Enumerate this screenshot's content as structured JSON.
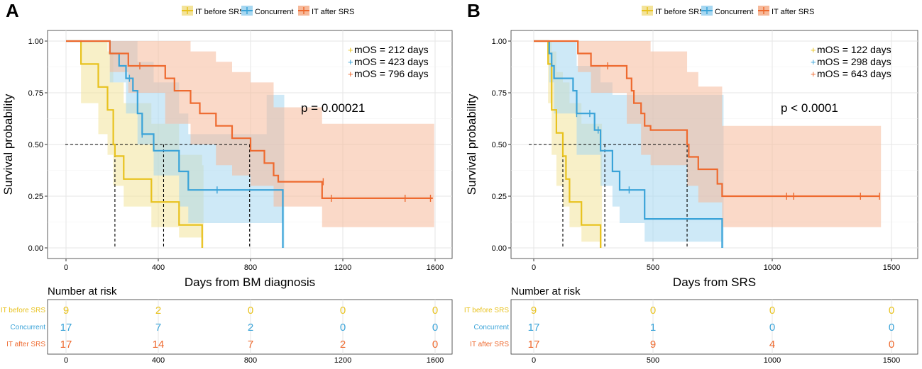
{
  "colors": {
    "before": "#e8c21e",
    "concurrent": "#3aa3d8",
    "after": "#ee6a2f",
    "before_fill": "#f3e39a",
    "concurrent_fill": "#a6d7f1",
    "after_fill": "#f6b99a",
    "grid": "#e6e6e6"
  },
  "chart_data": [
    {
      "type": "kaplan-meier",
      "panel_label": "A",
      "legend": [
        "IT before SRS",
        "Concurrent",
        "IT after SRS"
      ],
      "xlabel": "Days from BM diagnosis",
      "ylabel": "Survival probability",
      "xlim": [
        0,
        1600
      ],
      "ylim": [
        0,
        1
      ],
      "x_ticks": [
        "0",
        "400",
        "800",
        "1200",
        "1600"
      ],
      "y_ticks": [
        "0.00",
        "0.25",
        "0.50",
        "0.75",
        "1.00"
      ],
      "p_value_text": "p = 0.00021",
      "median_labels": [
        "mOS = 212 days",
        "mOS = 423 days",
        "mOS = 796 days"
      ],
      "medians": [
        212,
        423,
        796
      ],
      "series": [
        {
          "name": "IT before SRS",
          "color_key": "before",
          "steps": [
            [
              0,
              1
            ],
            [
              65,
              1
            ],
            [
              65,
              0.889
            ],
            [
              140,
              0.889
            ],
            [
              140,
              0.778
            ],
            [
              180,
              0.778
            ],
            [
              180,
              0.667
            ],
            [
              205,
              0.667
            ],
            [
              205,
              0.5
            ],
            [
              212,
              0.5
            ],
            [
              212,
              0.444
            ],
            [
              250,
              0.444
            ],
            [
              250,
              0.333
            ],
            [
              370,
              0.333
            ],
            [
              370,
              0.222
            ],
            [
              490,
              0.222
            ],
            [
              490,
              0.111
            ],
            [
              590,
              0.111
            ],
            [
              590,
              0
            ]
          ],
          "censors": [],
          "ci": [
            [
              0,
              1,
              1
            ],
            [
              65,
              0.7,
              1
            ],
            [
              140,
              0.55,
              1
            ],
            [
              180,
              0.45,
              0.95
            ],
            [
              205,
              0.3,
              0.8
            ],
            [
              250,
              0.2,
              0.7
            ],
            [
              370,
              0.1,
              0.6
            ],
            [
              490,
              0.05,
              0.45
            ],
            [
              590,
              0,
              0.4
            ]
          ]
        },
        {
          "name": "Concurrent",
          "color_key": "concurrent",
          "steps": [
            [
              0,
              1
            ],
            [
              190,
              1
            ],
            [
              190,
              0.94
            ],
            [
              230,
              0.94
            ],
            [
              230,
              0.88
            ],
            [
              260,
              0.88
            ],
            [
              260,
              0.82
            ],
            [
              290,
              0.82
            ],
            [
              290,
              0.76
            ],
            [
              310,
              0.76
            ],
            [
              310,
              0.65
            ],
            [
              330,
              0.65
            ],
            [
              330,
              0.55
            ],
            [
              380,
              0.55
            ],
            [
              380,
              0.47
            ],
            [
              490,
              0.47
            ],
            [
              490,
              0.37
            ],
            [
              530,
              0.37
            ],
            [
              530,
              0.28
            ],
            [
              940,
              0.28
            ],
            [
              940,
              0
            ]
          ],
          "censors": [
            [
              275,
              0.82
            ],
            [
              330,
              0.55
            ],
            [
              655,
              0.28
            ]
          ],
          "ci": [
            [
              0,
              1,
              1
            ],
            [
              190,
              0.8,
              1
            ],
            [
              260,
              0.65,
              1
            ],
            [
              310,
              0.5,
              0.9
            ],
            [
              380,
              0.35,
              0.8
            ],
            [
              490,
              0.2,
              0.65
            ],
            [
              530,
              0.12,
              0.55
            ],
            [
              720,
              0.12,
              0.55
            ],
            [
              870,
              0.12,
              0.74
            ],
            [
              940,
              0,
              0.74
            ]
          ]
        },
        {
          "name": "IT after SRS",
          "color_key": "after",
          "steps": [
            [
              0,
              1
            ],
            [
              190,
              1
            ],
            [
              190,
              0.94
            ],
            [
              270,
              0.94
            ],
            [
              270,
              0.88
            ],
            [
              430,
              0.88
            ],
            [
              430,
              0.82
            ],
            [
              470,
              0.82
            ],
            [
              470,
              0.76
            ],
            [
              540,
              0.76
            ],
            [
              540,
              0.7
            ],
            [
              580,
              0.7
            ],
            [
              580,
              0.65
            ],
            [
              650,
              0.65
            ],
            [
              650,
              0.59
            ],
            [
              720,
              0.59
            ],
            [
              720,
              0.53
            ],
            [
              800,
              0.53
            ],
            [
              800,
              0.47
            ],
            [
              860,
              0.47
            ],
            [
              860,
              0.41
            ],
            [
              900,
              0.41
            ],
            [
              900,
              0.35
            ],
            [
              920,
              0.35
            ],
            [
              920,
              0.32
            ],
            [
              1110,
              0.32
            ],
            [
              1110,
              0.24
            ],
            [
              1590,
              0.24
            ]
          ],
          "censors": [
            [
              320,
              0.88
            ],
            [
              1115,
              0.32
            ],
            [
              1150,
              0.24
            ],
            [
              1470,
              0.24
            ],
            [
              1580,
              0.24
            ]
          ],
          "ci": [
            [
              0,
              1,
              1
            ],
            [
              190,
              0.85,
              1
            ],
            [
              270,
              0.75,
              1
            ],
            [
              430,
              0.6,
              1
            ],
            [
              540,
              0.5,
              0.95
            ],
            [
              650,
              0.4,
              0.9
            ],
            [
              720,
              0.35,
              0.85
            ],
            [
              800,
              0.3,
              0.8
            ],
            [
              900,
              0.2,
              0.68
            ],
            [
              1110,
              0.1,
              0.6
            ],
            [
              1590,
              0.1,
              0.6
            ]
          ]
        }
      ],
      "risk_table": {
        "title": "Number at risk",
        "rows": [
          {
            "name": "IT before SRS",
            "color_key": "before",
            "values": [
              "9",
              "2",
              "0",
              "0",
              "0"
            ]
          },
          {
            "name": "Concurrent",
            "color_key": "concurrent",
            "values": [
              "17",
              "7",
              "2",
              "0",
              "0"
            ]
          },
          {
            "name": "IT after SRS",
            "color_key": "after",
            "values": [
              "17",
              "14",
              "7",
              "2",
              "0"
            ]
          }
        ],
        "x_positions": [
          0,
          400,
          800,
          1200,
          1600
        ]
      }
    },
    {
      "type": "kaplan-meier",
      "panel_label": "B",
      "legend": [
        "IT before SRS",
        "Concurrent",
        "IT after SRS"
      ],
      "xlabel": "Days from SRS",
      "ylabel": "Survival probability",
      "xlim": [
        0,
        1500
      ],
      "ylim": [
        0,
        1
      ],
      "x_ticks": [
        "0",
        "500",
        "1000",
        "1500"
      ],
      "y_ticks": [
        "0.00",
        "0.25",
        "0.50",
        "0.75",
        "1.00"
      ],
      "p_value_text": "p < 0.0001",
      "median_labels": [
        "mOS = 122 days",
        "mOS = 298 days",
        "mOS = 643 days"
      ],
      "medians": [
        122,
        298,
        643
      ],
      "series": [
        {
          "name": "IT before SRS",
          "color_key": "before",
          "steps": [
            [
              0,
              1
            ],
            [
              60,
              1
            ],
            [
              60,
              0.889
            ],
            [
              75,
              0.889
            ],
            [
              75,
              0.667
            ],
            [
              95,
              0.667
            ],
            [
              95,
              0.556
            ],
            [
              122,
              0.556
            ],
            [
              122,
              0.444
            ],
            [
              135,
              0.444
            ],
            [
              135,
              0.333
            ],
            [
              150,
              0.333
            ],
            [
              150,
              0.222
            ],
            [
              200,
              0.222
            ],
            [
              200,
              0.111
            ],
            [
              280,
              0.111
            ],
            [
              280,
              0
            ]
          ],
          "censors": [],
          "ci": [
            [
              0,
              1,
              1
            ],
            [
              60,
              0.7,
              1
            ],
            [
              75,
              0.45,
              0.95
            ],
            [
              95,
              0.3,
              0.85
            ],
            [
              122,
              0.2,
              0.8
            ],
            [
              150,
              0.1,
              0.7
            ],
            [
              200,
              0.03,
              0.6
            ],
            [
              280,
              0,
              0.6
            ]
          ]
        },
        {
          "name": "Concurrent",
          "color_key": "concurrent",
          "steps": [
            [
              0,
              1
            ],
            [
              65,
              1
            ],
            [
              65,
              0.94
            ],
            [
              75,
              0.94
            ],
            [
              75,
              0.88
            ],
            [
              85,
              0.88
            ],
            [
              85,
              0.82
            ],
            [
              165,
              0.82
            ],
            [
              165,
              0.76
            ],
            [
              180,
              0.76
            ],
            [
              180,
              0.65
            ],
            [
              255,
              0.65
            ],
            [
              255,
              0.57
            ],
            [
              280,
              0.57
            ],
            [
              280,
              0.47
            ],
            [
              330,
              0.47
            ],
            [
              330,
              0.37
            ],
            [
              360,
              0.37
            ],
            [
              360,
              0.28
            ],
            [
              465,
              0.28
            ],
            [
              465,
              0.14
            ],
            [
              790,
              0.14
            ],
            [
              790,
              0
            ]
          ],
          "censors": [
            [
              180,
              0.65
            ],
            [
              235,
              0.65
            ],
            [
              270,
              0.57
            ],
            [
              400,
              0.28
            ]
          ],
          "ci": [
            [
              0,
              1,
              1
            ],
            [
              65,
              0.8,
              1
            ],
            [
              85,
              0.65,
              1
            ],
            [
              180,
              0.45,
              0.88
            ],
            [
              280,
              0.3,
              0.8
            ],
            [
              330,
              0.2,
              0.74
            ],
            [
              360,
              0.12,
              0.74
            ],
            [
              465,
              0.03,
              0.74
            ],
            [
              790,
              0,
              0.74
            ]
          ]
        },
        {
          "name": "IT after SRS",
          "color_key": "after",
          "steps": [
            [
              0,
              1
            ],
            [
              185,
              1
            ],
            [
              185,
              0.94
            ],
            [
              240,
              0.94
            ],
            [
              240,
              0.88
            ],
            [
              390,
              0.88
            ],
            [
              390,
              0.82
            ],
            [
              410,
              0.82
            ],
            [
              410,
              0.76
            ],
            [
              420,
              0.76
            ],
            [
              420,
              0.7
            ],
            [
              450,
              0.7
            ],
            [
              450,
              0.65
            ],
            [
              465,
              0.65
            ],
            [
              465,
              0.59
            ],
            [
              490,
              0.59
            ],
            [
              490,
              0.57
            ],
            [
              643,
              0.57
            ],
            [
              643,
              0.5
            ],
            [
              650,
              0.5
            ],
            [
              650,
              0.44
            ],
            [
              690,
              0.44
            ],
            [
              690,
              0.38
            ],
            [
              770,
              0.38
            ],
            [
              770,
              0.31
            ],
            [
              790,
              0.31
            ],
            [
              790,
              0.25
            ],
            [
              1450,
              0.25
            ]
          ],
          "censors": [
            [
              310,
              0.88
            ],
            [
              1060,
              0.25
            ],
            [
              1090,
              0.25
            ],
            [
              1370,
              0.25
            ],
            [
              1450,
              0.25
            ]
          ],
          "ci": [
            [
              0,
              1,
              1
            ],
            [
              185,
              0.85,
              1
            ],
            [
              240,
              0.75,
              1
            ],
            [
              390,
              0.6,
              1
            ],
            [
              450,
              0.45,
              1
            ],
            [
              490,
              0.4,
              0.95
            ],
            [
              643,
              0.3,
              0.85
            ],
            [
              690,
              0.22,
              0.78
            ],
            [
              790,
              0.1,
              0.59
            ],
            [
              1450,
              0.1,
              0.59
            ]
          ]
        }
      ],
      "risk_table": {
        "title": "Number at risk",
        "rows": [
          {
            "name": "IT before SRS",
            "color_key": "before",
            "values": [
              "9",
              "0",
              "0",
              "0"
            ]
          },
          {
            "name": "Concurrent",
            "color_key": "concurrent",
            "values": [
              "17",
              "1",
              "0",
              "0"
            ]
          },
          {
            "name": "IT after SRS",
            "color_key": "after",
            "values": [
              "17",
              "9",
              "4",
              "0"
            ]
          }
        ],
        "x_positions": [
          0,
          500,
          1000,
          1500
        ]
      }
    }
  ]
}
